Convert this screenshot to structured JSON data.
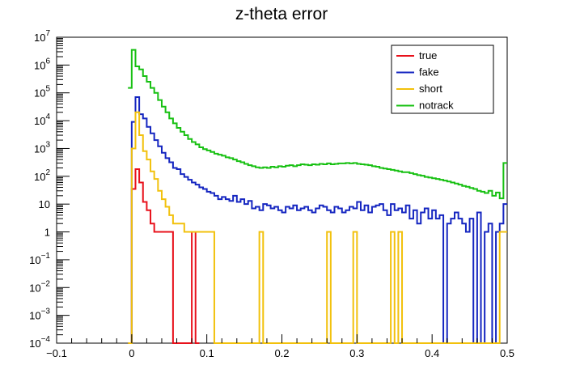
{
  "chart_data": {
    "type": "line",
    "title": "z-theta error",
    "xlabel": "",
    "ylabel": "",
    "xlim": [
      -0.1,
      0.5
    ],
    "ylim": [
      0.0001,
      10000000
    ],
    "yscale": "log",
    "bin_width": 0.005,
    "grid": false,
    "legend_position": "top-right",
    "x_ticks": [
      {
        "v": -0.1,
        "label": "−0.1"
      },
      {
        "v": 0,
        "label": "0"
      },
      {
        "v": 0.1,
        "label": "0.1"
      },
      {
        "v": 0.2,
        "label": "0.2"
      },
      {
        "v": 0.3,
        "label": "0.3"
      },
      {
        "v": 0.4,
        "label": "0.4"
      },
      {
        "v": 0.5,
        "label": "0.5"
      }
    ],
    "y_ticks": [
      {
        "v": 0.0001,
        "base": "10",
        "exp": "−4",
        "label": ""
      },
      {
        "v": 0.001,
        "base": "10",
        "exp": "−3",
        "label": ""
      },
      {
        "v": 0.01,
        "base": "10",
        "exp": "−2",
        "label": ""
      },
      {
        "v": 0.1,
        "base": "10",
        "exp": "−1",
        "label": ""
      },
      {
        "v": 1,
        "base": "",
        "exp": "",
        "label": "1"
      },
      {
        "v": 10,
        "base": "",
        "exp": "",
        "label": "10"
      },
      {
        "v": 100,
        "base": "10",
        "exp": "2",
        "label": ""
      },
      {
        "v": 1000,
        "base": "10",
        "exp": "3",
        "label": ""
      },
      {
        "v": 10000,
        "base": "10",
        "exp": "4",
        "label": ""
      },
      {
        "v": 100000,
        "base": "10",
        "exp": "5",
        "label": ""
      },
      {
        "v": 1000000,
        "base": "10",
        "exp": "6",
        "label": ""
      },
      {
        "v": 10000000,
        "base": "10",
        "exp": "7",
        "label": ""
      }
    ],
    "series": [
      {
        "name": "true",
        "color": "#e8111b",
        "bins": [
          [
            -0.005,
            0
          ],
          [
            0,
            35
          ],
          [
            0.005,
            180
          ],
          [
            0.01,
            60
          ],
          [
            0.015,
            12
          ],
          [
            0.02,
            6
          ],
          [
            0.025,
            2
          ],
          [
            0.03,
            1
          ],
          [
            0.035,
            1
          ],
          [
            0.04,
            1
          ],
          [
            0.045,
            1
          ],
          [
            0.05,
            1
          ],
          [
            0.055,
            0
          ],
          [
            0.075,
            0
          ],
          [
            0.08,
            1
          ],
          [
            0.085,
            0
          ]
        ]
      },
      {
        "name": "fake",
        "color": "#1425c0",
        "bins": [
          [
            -0.005,
            0
          ],
          [
            0,
            9000
          ],
          [
            0.005,
            70000
          ],
          [
            0.01,
            17000
          ],
          [
            0.015,
            12000
          ],
          [
            0.02,
            6000
          ],
          [
            0.025,
            3500
          ],
          [
            0.03,
            2000
          ],
          [
            0.035,
            1200
          ],
          [
            0.04,
            700
          ],
          [
            0.045,
            450
          ],
          [
            0.05,
            320
          ],
          [
            0.055,
            200
          ],
          [
            0.06,
            180
          ],
          [
            0.065,
            120
          ],
          [
            0.07,
            95
          ],
          [
            0.075,
            75
          ],
          [
            0.08,
            60
          ],
          [
            0.085,
            50
          ],
          [
            0.09,
            40
          ],
          [
            0.095,
            35
          ],
          [
            0.1,
            28
          ],
          [
            0.105,
            25
          ],
          [
            0.11,
            20
          ],
          [
            0.115,
            15
          ],
          [
            0.12,
            18
          ],
          [
            0.125,
            15
          ],
          [
            0.13,
            13
          ],
          [
            0.135,
            20
          ],
          [
            0.14,
            12
          ],
          [
            0.145,
            15
          ],
          [
            0.15,
            10
          ],
          [
            0.155,
            13
          ],
          [
            0.16,
            7
          ],
          [
            0.165,
            8
          ],
          [
            0.17,
            6
          ],
          [
            0.175,
            10
          ],
          [
            0.18,
            9
          ],
          [
            0.185,
            7
          ],
          [
            0.19,
            8
          ],
          [
            0.195,
            6
          ],
          [
            0.2,
            5
          ],
          [
            0.205,
            8
          ],
          [
            0.21,
            7
          ],
          [
            0.215,
            9
          ],
          [
            0.22,
            6
          ],
          [
            0.225,
            7
          ],
          [
            0.23,
            8
          ],
          [
            0.235,
            6
          ],
          [
            0.24,
            5
          ],
          [
            0.245,
            7
          ],
          [
            0.25,
            9
          ],
          [
            0.255,
            8
          ],
          [
            0.26,
            6
          ],
          [
            0.265,
            5
          ],
          [
            0.27,
            8
          ],
          [
            0.275,
            7
          ],
          [
            0.28,
            5
          ],
          [
            0.285,
            6
          ],
          [
            0.29,
            8
          ],
          [
            0.295,
            7
          ],
          [
            0.3,
            12
          ],
          [
            0.305,
            6
          ],
          [
            0.31,
            9
          ],
          [
            0.315,
            5
          ],
          [
            0.32,
            8
          ],
          [
            0.325,
            9
          ],
          [
            0.33,
            10
          ],
          [
            0.335,
            6
          ],
          [
            0.34,
            4
          ],
          [
            0.345,
            10
          ],
          [
            0.35,
            6
          ],
          [
            0.355,
            7
          ],
          [
            0.36,
            5
          ],
          [
            0.365,
            9
          ],
          [
            0.37,
            3
          ],
          [
            0.375,
            6
          ],
          [
            0.38,
            2
          ],
          [
            0.385,
            5
          ],
          [
            0.39,
            7
          ],
          [
            0.395,
            3
          ],
          [
            0.4,
            6
          ],
          [
            0.405,
            3
          ],
          [
            0.41,
            4
          ],
          [
            0.415,
            0
          ],
          [
            0.42,
            2
          ],
          [
            0.425,
            3
          ],
          [
            0.43,
            5
          ],
          [
            0.435,
            3
          ],
          [
            0.44,
            2
          ],
          [
            0.445,
            1
          ],
          [
            0.45,
            3
          ],
          [
            0.455,
            0
          ],
          [
            0.46,
            5
          ],
          [
            0.465,
            0
          ],
          [
            0.47,
            1
          ],
          [
            0.475,
            2
          ],
          [
            0.48,
            0
          ],
          [
            0.485,
            1
          ],
          [
            0.49,
            2
          ],
          [
            0.495,
            10
          ]
        ]
      },
      {
        "name": "short",
        "color": "#f2c10c",
        "bins": [
          [
            -0.005,
            0
          ],
          [
            0,
            1000
          ],
          [
            0.005,
            20000
          ],
          [
            0.01,
            3000
          ],
          [
            0.015,
            800
          ],
          [
            0.02,
            400
          ],
          [
            0.025,
            150
          ],
          [
            0.03,
            80
          ],
          [
            0.035,
            30
          ],
          [
            0.04,
            15
          ],
          [
            0.045,
            8
          ],
          [
            0.05,
            4
          ],
          [
            0.055,
            2
          ],
          [
            0.06,
            2
          ],
          [
            0.065,
            2
          ],
          [
            0.07,
            1
          ],
          [
            0.075,
            1
          ],
          [
            0.08,
            1
          ],
          [
            0.085,
            1
          ],
          [
            0.09,
            1
          ],
          [
            0.095,
            1
          ],
          [
            0.1,
            1
          ],
          [
            0.105,
            1
          ],
          [
            0.11,
            0
          ],
          [
            0.17,
            1
          ],
          [
            0.175,
            0
          ],
          [
            0.26,
            1
          ],
          [
            0.265,
            0
          ],
          [
            0.295,
            1
          ],
          [
            0.3,
            0
          ],
          [
            0.345,
            1
          ],
          [
            0.35,
            0
          ],
          [
            0.355,
            1
          ],
          [
            0.36,
            0
          ],
          [
            0.49,
            1
          ],
          [
            0.495,
            1
          ]
        ]
      },
      {
        "name": "notrack",
        "color": "#17c012",
        "bins": [
          [
            -0.005,
            150000
          ],
          [
            0,
            3500000
          ],
          [
            0.005,
            900000
          ],
          [
            0.01,
            700000
          ],
          [
            0.015,
            400000
          ],
          [
            0.02,
            250000
          ],
          [
            0.025,
            150000
          ],
          [
            0.03,
            100000
          ],
          [
            0.035,
            55000
          ],
          [
            0.04,
            32000
          ],
          [
            0.045,
            20000
          ],
          [
            0.05,
            12000
          ],
          [
            0.055,
            8000
          ],
          [
            0.06,
            5500
          ],
          [
            0.065,
            4000
          ],
          [
            0.07,
            3000
          ],
          [
            0.075,
            2200
          ],
          [
            0.08,
            1700
          ],
          [
            0.085,
            1400
          ],
          [
            0.09,
            1100
          ],
          [
            0.095,
            950
          ],
          [
            0.1,
            850
          ],
          [
            0.105,
            750
          ],
          [
            0.11,
            650
          ],
          [
            0.115,
            600
          ],
          [
            0.12,
            550
          ],
          [
            0.125,
            480
          ],
          [
            0.13,
            450
          ],
          [
            0.135,
            400
          ],
          [
            0.14,
            350
          ],
          [
            0.145,
            320
          ],
          [
            0.15,
            280
          ],
          [
            0.155,
            250
          ],
          [
            0.16,
            230
          ],
          [
            0.165,
            210
          ],
          [
            0.17,
            200
          ],
          [
            0.175,
            210
          ],
          [
            0.18,
            200
          ],
          [
            0.185,
            220
          ],
          [
            0.19,
            210
          ],
          [
            0.195,
            230
          ],
          [
            0.2,
            220
          ],
          [
            0.205,
            240
          ],
          [
            0.21,
            250
          ],
          [
            0.215,
            230
          ],
          [
            0.22,
            250
          ],
          [
            0.225,
            270
          ],
          [
            0.23,
            260
          ],
          [
            0.235,
            250
          ],
          [
            0.24,
            270
          ],
          [
            0.245,
            260
          ],
          [
            0.25,
            280
          ],
          [
            0.255,
            270
          ],
          [
            0.26,
            290
          ],
          [
            0.265,
            270
          ],
          [
            0.27,
            280
          ],
          [
            0.275,
            290
          ],
          [
            0.28,
            290
          ],
          [
            0.285,
            300
          ],
          [
            0.29,
            290
          ],
          [
            0.295,
            300
          ],
          [
            0.3,
            280
          ],
          [
            0.305,
            270
          ],
          [
            0.31,
            260
          ],
          [
            0.315,
            250
          ],
          [
            0.32,
            230
          ],
          [
            0.325,
            220
          ],
          [
            0.33,
            200
          ],
          [
            0.335,
            190
          ],
          [
            0.34,
            180
          ],
          [
            0.345,
            170
          ],
          [
            0.35,
            160
          ],
          [
            0.355,
            150
          ],
          [
            0.36,
            140
          ],
          [
            0.365,
            140
          ],
          [
            0.37,
            130
          ],
          [
            0.375,
            120
          ],
          [
            0.38,
            110
          ],
          [
            0.385,
            105
          ],
          [
            0.39,
            95
          ],
          [
            0.395,
            90
          ],
          [
            0.4,
            85
          ],
          [
            0.405,
            80
          ],
          [
            0.41,
            75
          ],
          [
            0.415,
            70
          ],
          [
            0.42,
            65
          ],
          [
            0.425,
            60
          ],
          [
            0.43,
            55
          ],
          [
            0.435,
            50
          ],
          [
            0.44,
            45
          ],
          [
            0.445,
            42
          ],
          [
            0.45,
            38
          ],
          [
            0.455,
            35
          ],
          [
            0.46,
            30
          ],
          [
            0.465,
            28
          ],
          [
            0.47,
            25
          ],
          [
            0.475,
            30
          ],
          [
            0.48,
            20
          ],
          [
            0.485,
            26
          ],
          [
            0.49,
            16
          ],
          [
            0.495,
            300
          ]
        ]
      }
    ]
  }
}
